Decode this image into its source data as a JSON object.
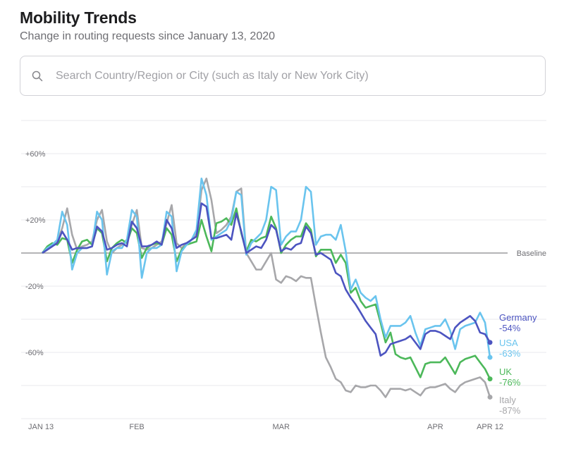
{
  "header": {
    "title": "Mobility Trends",
    "subtitle": "Change in routing requests since January 13, 2020"
  },
  "search": {
    "placeholder": "Search Country/Region or City (such as Italy or New York City)",
    "value": "",
    "icon": "search-icon"
  },
  "chart_data": {
    "type": "line",
    "title": "",
    "xlabel": "",
    "ylabel": "",
    "ylim": [
      -100,
      80
    ],
    "grid": true,
    "legend": "right (end labels)",
    "baseline_label": "Baseline",
    "y_ticks": [
      {
        "value": 60,
        "label": "+60%"
      },
      {
        "value": 20,
        "label": "+20%"
      },
      {
        "value": -20,
        "label": "-20%"
      },
      {
        "value": -60,
        "label": "-60%"
      }
    ],
    "x_ticks": [
      {
        "date": "2020-01-13",
        "label": "JAN 13"
      },
      {
        "date": "2020-02-01",
        "label": "FEB"
      },
      {
        "date": "2020-03-01",
        "label": "MAR"
      },
      {
        "date": "2020-04-01",
        "label": "APR"
      },
      {
        "date": "2020-04-12",
        "label": "APR 12"
      }
    ],
    "x": [
      "2020-01-13",
      "2020-01-14",
      "2020-01-15",
      "2020-01-16",
      "2020-01-17",
      "2020-01-18",
      "2020-01-19",
      "2020-01-20",
      "2020-01-21",
      "2020-01-22",
      "2020-01-23",
      "2020-01-24",
      "2020-01-25",
      "2020-01-26",
      "2020-01-27",
      "2020-01-28",
      "2020-01-29",
      "2020-01-30",
      "2020-01-31",
      "2020-02-01",
      "2020-02-02",
      "2020-02-03",
      "2020-02-04",
      "2020-02-05",
      "2020-02-06",
      "2020-02-07",
      "2020-02-08",
      "2020-02-09",
      "2020-02-10",
      "2020-02-11",
      "2020-02-12",
      "2020-02-13",
      "2020-02-14",
      "2020-02-15",
      "2020-02-16",
      "2020-02-17",
      "2020-02-18",
      "2020-02-19",
      "2020-02-20",
      "2020-02-21",
      "2020-02-22",
      "2020-02-23",
      "2020-02-24",
      "2020-02-25",
      "2020-02-26",
      "2020-02-27",
      "2020-02-28",
      "2020-02-29",
      "2020-03-01",
      "2020-03-02",
      "2020-03-03",
      "2020-03-04",
      "2020-03-05",
      "2020-03-06",
      "2020-03-07",
      "2020-03-08",
      "2020-03-09",
      "2020-03-10",
      "2020-03-11",
      "2020-03-12",
      "2020-03-13",
      "2020-03-14",
      "2020-03-15",
      "2020-03-16",
      "2020-03-17",
      "2020-03-18",
      "2020-03-19",
      "2020-03-20",
      "2020-03-21",
      "2020-03-22",
      "2020-03-23",
      "2020-03-24",
      "2020-03-25",
      "2020-03-26",
      "2020-03-27",
      "2020-03-28",
      "2020-03-29",
      "2020-03-30",
      "2020-03-31",
      "2020-04-01",
      "2020-04-02",
      "2020-04-03",
      "2020-04-04",
      "2020-04-05",
      "2020-04-06",
      "2020-04-07",
      "2020-04-08",
      "2020-04-09",
      "2020-04-10",
      "2020-04-11",
      "2020-04-12"
    ],
    "series": [
      {
        "name": "Germany",
        "end_label": "-54%",
        "color": "#4c54c0",
        "values": [
          0,
          2,
          4,
          6,
          13,
          8,
          2,
          3,
          3,
          3,
          4,
          16,
          13,
          2,
          3,
          5,
          6,
          4,
          19,
          15,
          4,
          4,
          5,
          7,
          5,
          20,
          15,
          3,
          5,
          6,
          8,
          10,
          30,
          28,
          9,
          9,
          10,
          11,
          8,
          24,
          13,
          0,
          2,
          4,
          3,
          8,
          17,
          14,
          1,
          3,
          2,
          5,
          6,
          16,
          12,
          -1,
          0,
          -2,
          -4,
          -12,
          -14,
          -22,
          -27,
          -31,
          -36,
          -41,
          -45,
          -49,
          -62,
          -60,
          -55,
          -54,
          -53,
          -52,
          -50,
          -54,
          -58,
          -49,
          -47,
          -47,
          -48,
          -50,
          -52,
          -45,
          -42,
          -40,
          -38,
          -41,
          -48,
          -49,
          -54
        ]
      },
      {
        "name": "USA",
        "end_label": "-63%",
        "color": "#6ac4ee",
        "values": [
          0,
          3,
          5,
          8,
          25,
          17,
          -10,
          0,
          3,
          3,
          4,
          25,
          20,
          -13,
          1,
          3,
          3,
          8,
          26,
          22,
          -15,
          0,
          3,
          3,
          5,
          25,
          22,
          -11,
          1,
          5,
          8,
          14,
          45,
          35,
          8,
          10,
          12,
          14,
          20,
          37,
          35,
          -1,
          6,
          9,
          12,
          20,
          40,
          38,
          5,
          10,
          13,
          13,
          20,
          40,
          37,
          5,
          10,
          11,
          11,
          8,
          17,
          1,
          -22,
          -16,
          -24,
          -27,
          -29,
          -26,
          -40,
          -51,
          -44,
          -44,
          -44,
          -42,
          -38,
          -48,
          -56,
          -46,
          -45,
          -44,
          -44,
          -40,
          -47,
          -58,
          -46,
          -44,
          -43,
          -42,
          -36,
          -42,
          -63
        ]
      },
      {
        "name": "UK",
        "end_label": "-76%",
        "color": "#4cb85a",
        "values": [
          0,
          4,
          6,
          5,
          9,
          8,
          -6,
          2,
          7,
          8,
          5,
          15,
          12,
          -5,
          3,
          6,
          8,
          6,
          15,
          12,
          -3,
          3,
          5,
          6,
          5,
          15,
          11,
          -5,
          2,
          5,
          6,
          7,
          20,
          10,
          1,
          18,
          19,
          21,
          17,
          27,
          12,
          1,
          8,
          7,
          9,
          10,
          22,
          15,
          0,
          5,
          8,
          10,
          10,
          18,
          14,
          -2,
          2,
          2,
          2,
          -6,
          -1,
          -6,
          -24,
          -21,
          -29,
          -33,
          -32,
          -31,
          -42,
          -54,
          -48,
          -61,
          -63,
          -64,
          -63,
          -69,
          -75,
          -67,
          -66,
          -66,
          -66,
          -63,
          -68,
          -73,
          -66,
          -64,
          -63,
          -62,
          -66,
          -70,
          -76
        ]
      },
      {
        "name": "Italy",
        "end_label": "-87%",
        "color": "#a7a7aa",
        "values": [
          0,
          2,
          4,
          7,
          15,
          27,
          11,
          2,
          4,
          5,
          7,
          20,
          26,
          7,
          0,
          3,
          5,
          8,
          17,
          26,
          3,
          2,
          3,
          5,
          7,
          18,
          29,
          6,
          3,
          6,
          8,
          12,
          38,
          45,
          32,
          12,
          14,
          17,
          22,
          37,
          39,
          0,
          -5,
          -10,
          -10,
          -5,
          0,
          -16,
          -18,
          -14,
          -15,
          -17,
          -14,
          -15,
          -15,
          -32,
          -48,
          -63,
          -69,
          -76,
          -78,
          -83,
          -84,
          -80,
          -81,
          -81,
          -80,
          -80,
          -83,
          -87,
          -82,
          -82,
          -82,
          -83,
          -82,
          -84,
          -86,
          -82,
          -81,
          -81,
          -80,
          -79,
          -82,
          -84,
          -80,
          -78,
          -77,
          -76,
          -75,
          -78,
          -87
        ]
      }
    ]
  }
}
